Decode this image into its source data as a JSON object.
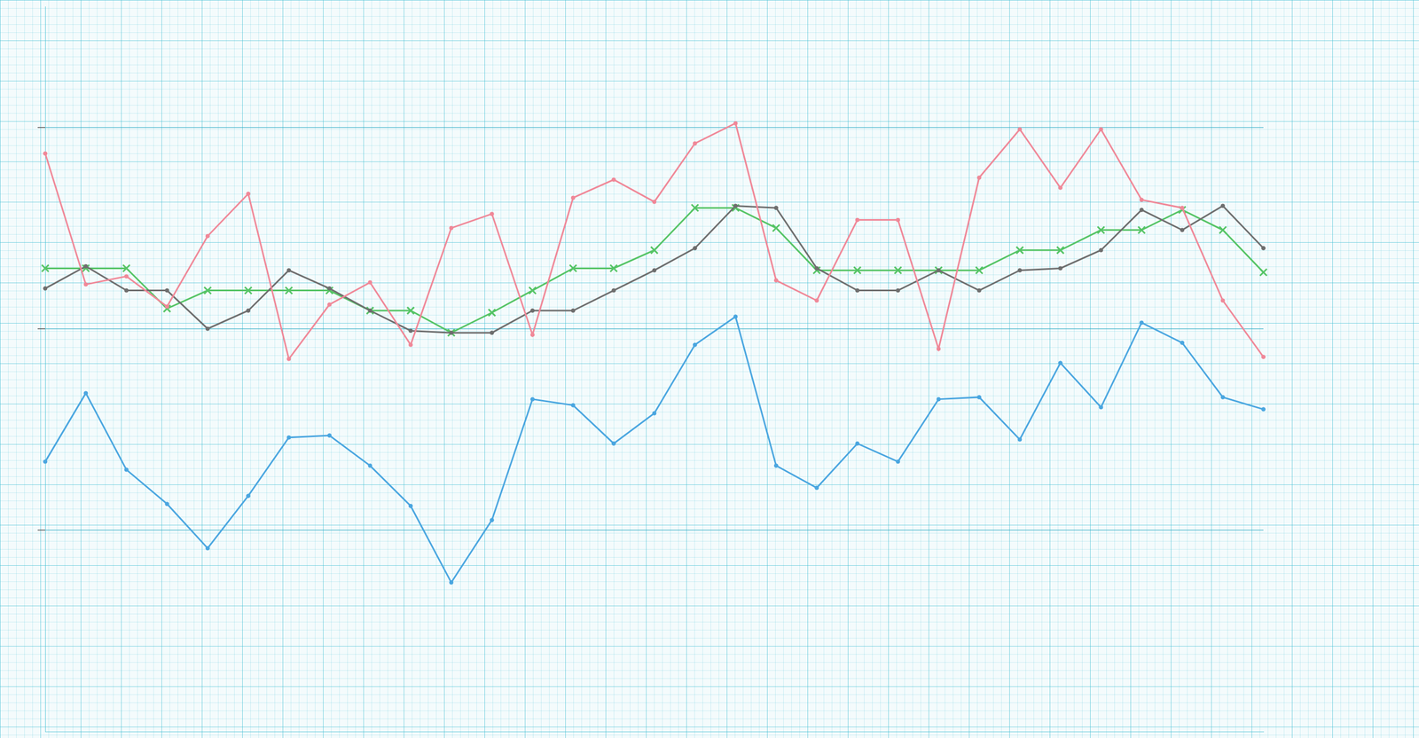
{
  "chart_data": {
    "type": "line",
    "categories": [
      null,
      null,
      null,
      null,
      null,
      null,
      null,
      null,
      null,
      null,
      null,
      null,
      null,
      null,
      null,
      null,
      null,
      null,
      null,
      null,
      null,
      null,
      null,
      null,
      null,
      null,
      null,
      null,
      null,
      null,
      null
    ],
    "series": [
      {
        "color": "#f08898",
        "marker": "circle",
        "values": [
          28.7,
          22.2,
          22.6,
          21.1,
          24.6,
          26.7,
          18.5,
          21.2,
          22.3,
          19.2,
          25.0,
          25.7,
          19.7,
          26.5,
          27.4,
          26.3,
          29.2,
          30.2,
          22.4,
          21.4,
          25.4,
          25.4,
          19.0,
          27.5,
          29.9,
          27.0,
          29.9,
          26.4,
          26.0,
          21.4,
          18.6
        ]
      },
      {
        "color": "#6e6e6e",
        "marker": "circle",
        "values": [
          22.0,
          23.1,
          21.9,
          21.9,
          20.0,
          20.9,
          22.9,
          22.0,
          20.9,
          19.9,
          19.8,
          19.8,
          20.9,
          20.9,
          21.9,
          22.9,
          24.0,
          26.1,
          26.0,
          23.0,
          21.9,
          21.9,
          22.9,
          21.9,
          22.9,
          23.0,
          23.9,
          25.9,
          24.9,
          26.1,
          24.0
        ]
      },
      {
        "color": "#55c465",
        "marker": "cross",
        "values": [
          23.0,
          23.0,
          23.0,
          21.0,
          21.9,
          21.9,
          21.9,
          21.9,
          20.9,
          20.9,
          19.8,
          20.8,
          21.9,
          23.0,
          23.0,
          23.9,
          26.0,
          26.0,
          25.0,
          22.9,
          22.9,
          22.9,
          22.9,
          22.9,
          23.9,
          23.9,
          24.9,
          24.9,
          25.9,
          24.9,
          22.8
        ]
      },
      {
        "color": "#4aa6e0",
        "marker": "circle",
        "values": [
          13.4,
          16.8,
          13.0,
          11.3,
          9.1,
          11.7,
          14.6,
          14.7,
          13.2,
          11.2,
          7.4,
          10.5,
          16.5,
          16.2,
          14.3,
          15.8,
          19.2,
          20.6,
          13.2,
          12.1,
          14.3,
          13.4,
          16.5,
          16.6,
          14.5,
          18.3,
          16.1,
          20.3,
          19.3,
          16.6,
          16.0
        ]
      }
    ],
    "ylim": [
      0,
      36
    ],
    "yticks": [
      10,
      20,
      30
    ],
    "grid": true,
    "tick_labels": false
  }
}
